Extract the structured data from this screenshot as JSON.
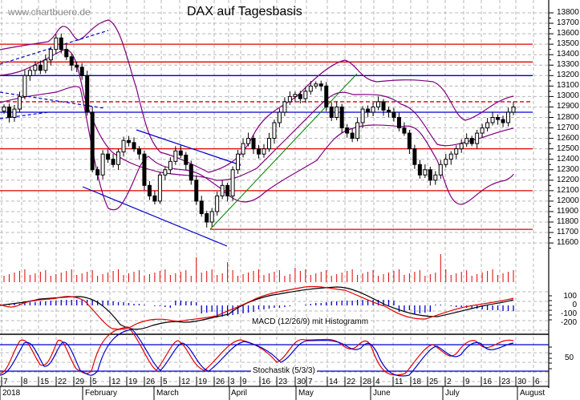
{
  "header": {
    "watermark": "www.chartbuero.de",
    "title": "DAX auf Tagesbasis"
  },
  "panels": {
    "macd_label": "MACD (12/26/9) mit Histogramm",
    "stoch_label": "Stochastik (5/3/3)"
  },
  "colors": {
    "support_resistance": "#e00000",
    "blue_line": "#0000cc",
    "bollinger": "#800080",
    "trend_up": "#008000",
    "grid": "#b8b8b8",
    "volume": "#e00000",
    "macd_line": "#e00000",
    "signal_line": "#000000",
    "histogram": "#0000cc",
    "stoch_k": "#e00000",
    "stoch_d": "#0000cc"
  },
  "chart_data": [
    {
      "type": "candlestick",
      "title": "DAX auf Tagesbasis",
      "ylabel": "",
      "ylim": [
        11550,
        13850
      ],
      "y_ticks": [
        13800,
        13700,
        13600,
        13500,
        13400,
        13300,
        13200,
        13100,
        13000,
        12900,
        12800,
        12700,
        12600,
        12500,
        12400,
        12300,
        12200,
        12100,
        12000,
        11900,
        11800,
        11700,
        11600
      ],
      "x_week_labels": [
        "7",
        "8",
        "15",
        "22",
        "29",
        "5",
        "12",
        "19",
        "26",
        "5",
        "12",
        "19",
        "26",
        "3",
        "9",
        "16",
        "23",
        "30",
        "7",
        "14",
        "22",
        "28",
        "4",
        "11",
        "18",
        "25",
        "2",
        "9",
        "16",
        "23",
        "30",
        "6"
      ],
      "x_months": [
        "2018",
        "February",
        "March",
        "April",
        "May",
        "June",
        "July",
        "August"
      ],
      "horizontal_levels": [
        {
          "value": 13500,
          "color": "red",
          "style": "solid"
        },
        {
          "value": 13330,
          "color": "red",
          "style": "solid"
        },
        {
          "value": 13200,
          "color": "blue",
          "style": "solid"
        },
        {
          "value": 12950,
          "color": "red",
          "style": "dashed"
        },
        {
          "value": 12850,
          "color": "blue",
          "style": "solid"
        },
        {
          "value": 12500,
          "color": "red",
          "style": "solid"
        },
        {
          "value": 12100,
          "color": "red",
          "style": "solid"
        },
        {
          "value": 11730,
          "color": "red",
          "style": "solid"
        }
      ],
      "close_series_approx": [
        12900,
        12800,
        12880,
        13000,
        13200,
        13250,
        13300,
        13250,
        13350,
        13450,
        13560,
        13450,
        13380,
        13300,
        13280,
        13200,
        12850,
        12300,
        12250,
        12450,
        12400,
        12350,
        12470,
        12580,
        12560,
        12500,
        12450,
        12150,
        12050,
        12000,
        12250,
        12300,
        12380,
        12480,
        12440,
        12350,
        12200,
        12000,
        11880,
        11800,
        11900,
        12050,
        12150,
        12050,
        12300,
        12450,
        12550,
        12600,
        12500,
        12450,
        12500,
        12600,
        12750,
        12850,
        12950,
        13000,
        13020,
        12980,
        13050,
        13100,
        13120,
        13100,
        12900,
        12800,
        12900,
        12700,
        12650,
        12600,
        12750,
        12880,
        12850,
        12900,
        12950,
        12870,
        12850,
        12800,
        12700,
        12650,
        12500,
        12350,
        12250,
        12300,
        12200,
        12250,
        12350,
        12400,
        12450,
        12500,
        12550,
        12600,
        12550,
        12650,
        12700,
        12750,
        12800,
        12780,
        12750,
        12850,
        12900
      ]
    },
    {
      "type": "bar",
      "title": "Volume",
      "note": "red volume bars beneath price panel, spikes mid-March, mid-April and late June"
    },
    {
      "type": "line",
      "title": "MACD (12/26/9) mit Histogramm",
      "y_ticks": [
        100,
        0,
        -100,
        -200
      ],
      "series": [
        {
          "name": "MACD",
          "color": "red"
        },
        {
          "name": "Signal",
          "color": "black"
        },
        {
          "name": "Histogramm",
          "color": "blue"
        }
      ]
    },
    {
      "type": "line",
      "title": "Stochastik (5/3/3)",
      "y_ticks": [
        50
      ],
      "levels": [
        80,
        20
      ],
      "series": [
        {
          "name": "%K",
          "color": "red"
        },
        {
          "name": "%D",
          "color": "blue"
        }
      ]
    }
  ]
}
